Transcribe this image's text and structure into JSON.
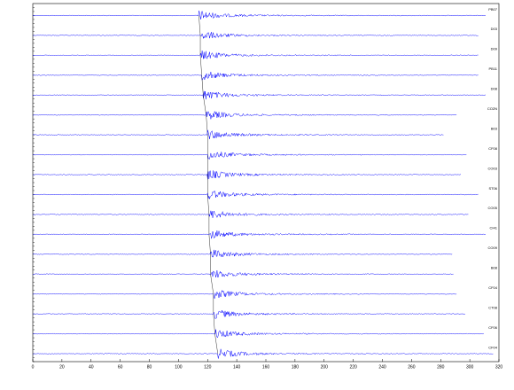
{
  "chart_data": {
    "type": "seismogram",
    "xlim": [
      0,
      320
    ],
    "xticks": [
      0,
      20,
      40,
      60,
      80,
      100,
      120,
      140,
      160,
      180,
      200,
      220,
      240,
      260,
      280,
      300,
      320
    ],
    "color": "#0000ff",
    "traces": [
      {
        "name": "PB07",
        "onset": 114,
        "end": 311
      },
      {
        "name": "D03",
        "onset": 115,
        "end": 306
      },
      {
        "name": "D09",
        "onset": 115,
        "end": 306
      },
      {
        "name": "PB11",
        "onset": 116,
        "end": 306
      },
      {
        "name": "D08",
        "onset": 117,
        "end": 311
      },
      {
        "name": "CO2N",
        "onset": 119,
        "end": 291
      },
      {
        "name": "B03",
        "onset": 120,
        "end": 282
      },
      {
        "name": "CF08",
        "onset": 120,
        "end": 298
      },
      {
        "name": "CO03",
        "onset": 120,
        "end": 294
      },
      {
        "name": "ST06",
        "onset": 120,
        "end": 306
      },
      {
        "name": "CO05",
        "onset": 121,
        "end": 299
      },
      {
        "name": "CI41",
        "onset": 121,
        "end": 311
      },
      {
        "name": "CO09",
        "onset": 122,
        "end": 288
      },
      {
        "name": "B08",
        "onset": 122,
        "end": 289
      },
      {
        "name": "CF04",
        "onset": 124,
        "end": 291
      },
      {
        "name": "CT08",
        "onset": 124,
        "end": 297
      },
      {
        "name": "CF06",
        "onset": 125,
        "end": 310
      },
      {
        "name": "CF04",
        "onset": 127,
        "end": 316
      }
    ]
  }
}
